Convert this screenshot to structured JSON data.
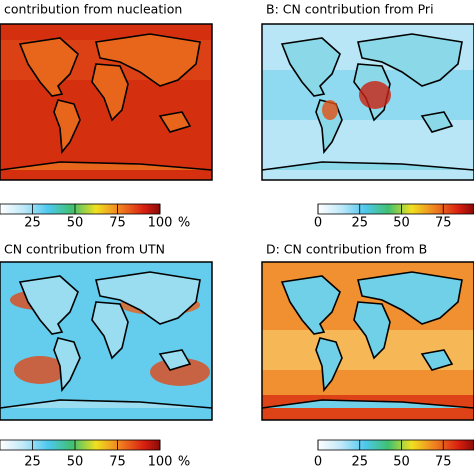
{
  "panels": [
    {
      "title": "contribution from nucleation",
      "ticks": [
        25,
        50,
        75,
        100
      ],
      "unit": "%",
      "lim": [
        0,
        100
      ]
    },
    {
      "title": "B: CN contribution from Pri",
      "ticks": [
        0,
        25,
        50,
        75
      ],
      "lim": [
        0,
        100
      ]
    },
    {
      "title": "CN contribution from UTN",
      "ticks": [
        25,
        50,
        75,
        100
      ],
      "unit": "%",
      "lim": [
        0,
        100
      ]
    },
    {
      "title": "D: CN contribution from B",
      "ticks": [
        0,
        25,
        50,
        75
      ],
      "lim": [
        0,
        100
      ]
    }
  ]
}
